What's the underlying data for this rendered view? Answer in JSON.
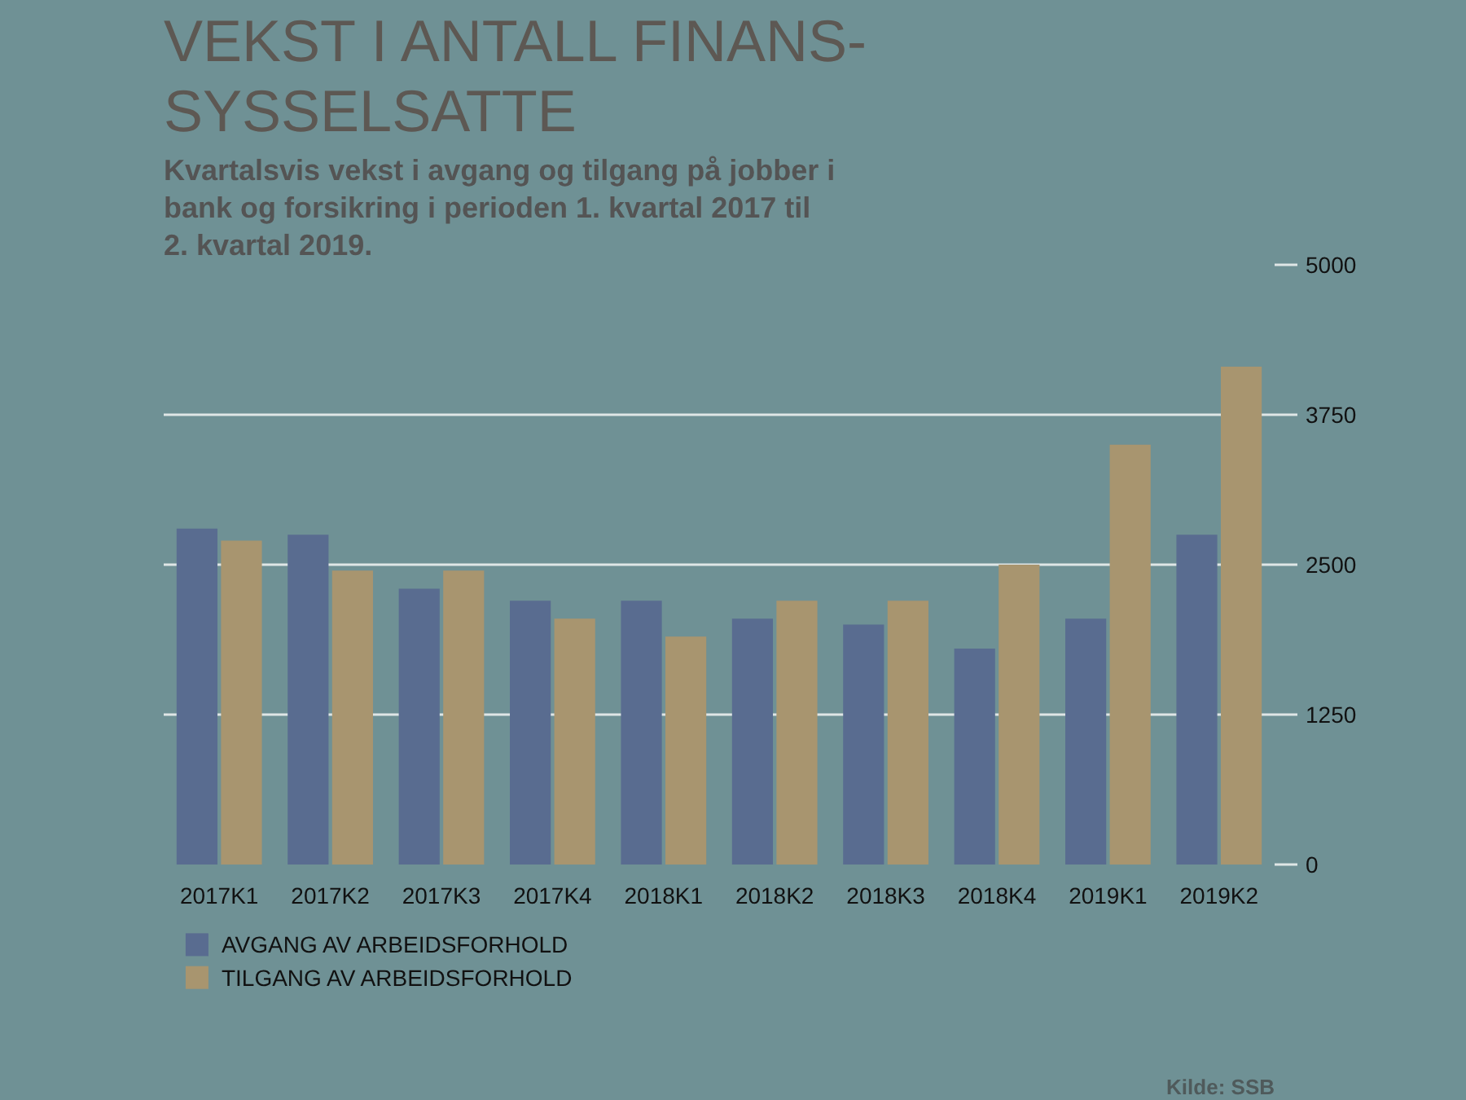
{
  "chart_data": {
    "type": "bar",
    "title": "VEKST I ANTALL FINANS-SYSSELSATTE",
    "subtitle": "Kvartalsvis vekst i avgang og tilgang på jobber i bank og forsikring i perioden 1. kvartal 2017 til 2. kvartal 2019.",
    "categories": [
      "2017K1",
      "2017K2",
      "2017K3",
      "2017K4",
      "2018K1",
      "2018K2",
      "2018K3",
      "2018K4",
      "2019K1",
      "2019K2"
    ],
    "series": [
      {
        "name": "AVGANG AV ARBEIDSFORHOLD",
        "color": "#596c90",
        "values": [
          2800,
          2750,
          2300,
          2200,
          2200,
          2050,
          2000,
          1800,
          2050,
          2750
        ]
      },
      {
        "name": "TILGANG AV ARBEIDSFORHOLD",
        "color": "#a8956f",
        "values": [
          2700,
          2450,
          2450,
          2050,
          1900,
          2200,
          2200,
          2500,
          3500,
          4150
        ]
      }
    ],
    "ylim": [
      0,
      5000
    ],
    "yticks": [
      0,
      1250,
      2500,
      3750,
      5000
    ],
    "grid": "y",
    "legend": "bottom left",
    "annotations": [
      "Kilde: SSB"
    ]
  }
}
